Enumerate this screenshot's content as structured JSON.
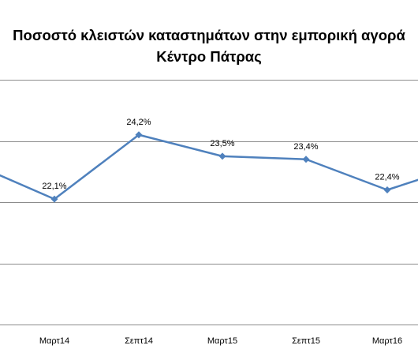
{
  "chart_data": {
    "type": "line",
    "title": "Ποσοστό κλειστών καταστημάτων στην εμπορική αγορά",
    "subtitle": "Κέντρο Πάτρας",
    "categories": [
      "Μαρτ14",
      "Σεπτ14",
      "Μαρτ15",
      "Σεπτ15",
      "Μαρτ16"
    ],
    "series": [
      {
        "values": [
          22.1,
          24.2,
          23.5,
          23.4,
          22.4
        ],
        "data_labels": [
          "22,1%",
          "24,2%",
          "23,5%",
          "23,4%",
          "22,4%"
        ]
      }
    ],
    "cropped_edges": {
      "left_value": 23.3,
      "right_value": 23.3
    },
    "ylim": [
      18,
      26
    ],
    "grid": true,
    "legend": "none",
    "colors": {
      "series": "#4f81bd",
      "grid": "#8c8c8c"
    }
  }
}
